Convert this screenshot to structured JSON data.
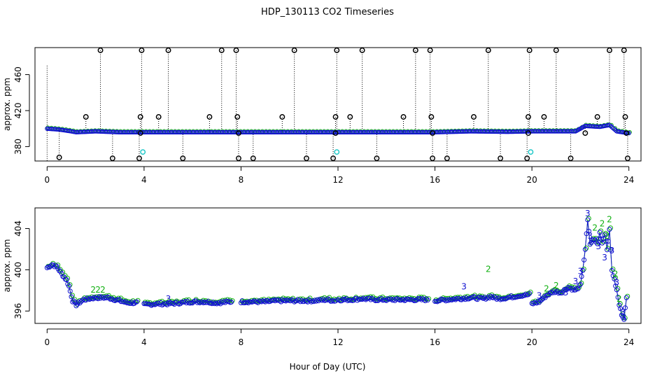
{
  "title": "HDP_130113  CO2 Timeseries",
  "colors": {
    "frame": "#000000",
    "outlier": "#000000",
    "blue": "#1010d0",
    "green": "#10b010",
    "cyan": "#20c8c8"
  },
  "chart_data": [
    {
      "type": "scatter",
      "name": "top",
      "title": "HDP_130113  CO2 Timeseries",
      "xlabel": "",
      "ylabel": "approx. ppm",
      "xlim": [
        -0.5,
        24.5
      ],
      "ylim": [
        364,
        490
      ],
      "xticks": [
        0,
        4,
        8,
        12,
        16,
        20,
        24
      ],
      "yticks": [
        380,
        420,
        460
      ],
      "baseline": [
        [
          0,
          400
        ],
        [
          0.5,
          399
        ],
        [
          1.0,
          397
        ],
        [
          1.2,
          396
        ],
        [
          2,
          397
        ],
        [
          3,
          396
        ],
        [
          4,
          396
        ],
        [
          8,
          396
        ],
        [
          12,
          396
        ],
        [
          16,
          396
        ],
        [
          17.5,
          397
        ],
        [
          19,
          396.5
        ],
        [
          20,
          397
        ],
        [
          21,
          397
        ],
        [
          21.8,
          397
        ],
        [
          22.2,
          403
        ],
        [
          22.8,
          402
        ],
        [
          23.2,
          404
        ],
        [
          23.5,
          397
        ],
        [
          24,
          395
        ]
      ],
      "cyan_points": [
        [
          3.95,
          374
        ],
        [
          11.95,
          374
        ],
        [
          19.95,
          374
        ]
      ],
      "outliers": [
        {
          "x": 0.5,
          "y": 368
        },
        {
          "x": 1.6,
          "y": 413
        },
        {
          "x": 2.2,
          "y": 487
        },
        {
          "x": 2.7,
          "y": 367
        },
        {
          "x": 3.8,
          "y": 367
        },
        {
          "x": 3.85,
          "y": 413
        },
        {
          "x": 3.9,
          "y": 487
        },
        {
          "x": 3.85,
          "y": 395
        },
        {
          "x": 4.6,
          "y": 413
        },
        {
          "x": 5.0,
          "y": 487
        },
        {
          "x": 5.6,
          "y": 367
        },
        {
          "x": 6.7,
          "y": 413
        },
        {
          "x": 7.2,
          "y": 487
        },
        {
          "x": 7.8,
          "y": 487
        },
        {
          "x": 7.85,
          "y": 413
        },
        {
          "x": 7.9,
          "y": 367
        },
        {
          "x": 7.9,
          "y": 395
        },
        {
          "x": 8.5,
          "y": 367
        },
        {
          "x": 9.7,
          "y": 413
        },
        {
          "x": 10.2,
          "y": 487
        },
        {
          "x": 10.7,
          "y": 367
        },
        {
          "x": 11.8,
          "y": 367
        },
        {
          "x": 11.9,
          "y": 413
        },
        {
          "x": 11.95,
          "y": 487
        },
        {
          "x": 11.9,
          "y": 395
        },
        {
          "x": 12.5,
          "y": 413
        },
        {
          "x": 13.0,
          "y": 487
        },
        {
          "x": 13.6,
          "y": 367
        },
        {
          "x": 14.7,
          "y": 413
        },
        {
          "x": 15.2,
          "y": 487
        },
        {
          "x": 15.8,
          "y": 487
        },
        {
          "x": 15.85,
          "y": 413
        },
        {
          "x": 15.9,
          "y": 367
        },
        {
          "x": 15.9,
          "y": 395
        },
        {
          "x": 16.5,
          "y": 367
        },
        {
          "x": 17.6,
          "y": 413
        },
        {
          "x": 18.2,
          "y": 487
        },
        {
          "x": 18.7,
          "y": 367
        },
        {
          "x": 19.8,
          "y": 367
        },
        {
          "x": 19.85,
          "y": 413
        },
        {
          "x": 19.9,
          "y": 487
        },
        {
          "x": 19.85,
          "y": 395
        },
        {
          "x": 20.5,
          "y": 413
        },
        {
          "x": 21.0,
          "y": 487
        },
        {
          "x": 21.6,
          "y": 367
        },
        {
          "x": 22.2,
          "y": 395
        },
        {
          "x": 22.7,
          "y": 413
        },
        {
          "x": 23.2,
          "y": 487
        },
        {
          "x": 23.8,
          "y": 487
        },
        {
          "x": 23.85,
          "y": 413
        },
        {
          "x": 23.95,
          "y": 367
        },
        {
          "x": 23.9,
          "y": 395
        }
      ]
    },
    {
      "type": "scatter",
      "name": "bottom",
      "title": "",
      "xlabel": "Hour of Day (UTC)",
      "ylabel": "approx. ppm",
      "xlim": [
        -0.5,
        24.5
      ],
      "ylim": [
        394.8,
        406.0
      ],
      "xticks": [
        0,
        4,
        8,
        12,
        16,
        20,
        24
      ],
      "yticks": [
        396,
        400,
        404
      ],
      "labels": [
        "2",
        "3"
      ],
      "segments": [
        [
          [
            0,
            400.2
          ],
          [
            0.2,
            400.5
          ],
          [
            0.4,
            400.3
          ],
          [
            0.6,
            399.6
          ],
          [
            0.8,
            399.0
          ],
          [
            0.9,
            398.4
          ],
          [
            1.05,
            397.0
          ],
          [
            1.2,
            396.6
          ],
          [
            1.5,
            397.1
          ],
          [
            2.0,
            397.3
          ],
          [
            2.5,
            397.3
          ],
          [
            3.0,
            397.0
          ],
          [
            3.3,
            396.8
          ],
          [
            3.7,
            396.8
          ]
        ],
        [
          [
            4.0,
            396.6
          ],
          [
            4.5,
            396.7
          ],
          [
            5.0,
            396.7
          ],
          [
            5.5,
            396.8
          ],
          [
            6.0,
            396.9
          ],
          [
            6.5,
            396.9
          ],
          [
            7.0,
            396.8
          ],
          [
            7.6,
            396.9
          ]
        ],
        [
          [
            8.0,
            396.9
          ],
          [
            8.5,
            396.9
          ],
          [
            9.0,
            396.9
          ],
          [
            9.5,
            397.0
          ],
          [
            10.0,
            397.0
          ],
          [
            10.5,
            397.0
          ],
          [
            11.0,
            397.0
          ],
          [
            11.5,
            397.1
          ],
          [
            11.9,
            397.0
          ]
        ],
        [
          [
            12.0,
            397.1
          ],
          [
            12.5,
            397.1
          ],
          [
            13.0,
            397.2
          ],
          [
            13.5,
            397.1
          ],
          [
            14.0,
            397.1
          ],
          [
            14.5,
            397.1
          ],
          [
            15.0,
            397.1
          ],
          [
            15.7,
            397.1
          ]
        ],
        [
          [
            16.0,
            397.0
          ],
          [
            16.5,
            397.1
          ],
          [
            17.0,
            397.2
          ],
          [
            17.5,
            397.3
          ],
          [
            18.0,
            397.2
          ],
          [
            18.3,
            397.4
          ],
          [
            18.6,
            397.2
          ],
          [
            19.0,
            397.3
          ],
          [
            19.5,
            397.5
          ],
          [
            19.9,
            397.6
          ]
        ],
        [
          [
            20.0,
            396.7
          ],
          [
            20.3,
            396.9
          ],
          [
            20.6,
            397.5
          ],
          [
            20.9,
            397.9
          ],
          [
            21.2,
            397.8
          ],
          [
            21.5,
            398.3
          ],
          [
            21.8,
            398.0
          ],
          [
            22.0,
            398.5
          ],
          [
            22.1,
            400.0
          ],
          [
            22.2,
            402.0
          ],
          [
            22.3,
            404.8
          ],
          [
            22.4,
            402.5
          ],
          [
            22.55,
            403.0
          ],
          [
            22.7,
            402.5
          ],
          [
            22.8,
            403.6
          ],
          [
            22.9,
            402.6
          ],
          [
            23.0,
            403.5
          ],
          [
            23.1,
            402.0
          ],
          [
            23.2,
            403.8
          ],
          [
            23.3,
            400.0
          ],
          [
            23.4,
            399.0
          ],
          [
            23.5,
            398.0
          ],
          [
            23.6,
            396.6
          ],
          [
            23.7,
            395.7
          ],
          [
            23.8,
            395.3
          ],
          [
            23.9,
            397.2
          ]
        ]
      ]
    }
  ]
}
